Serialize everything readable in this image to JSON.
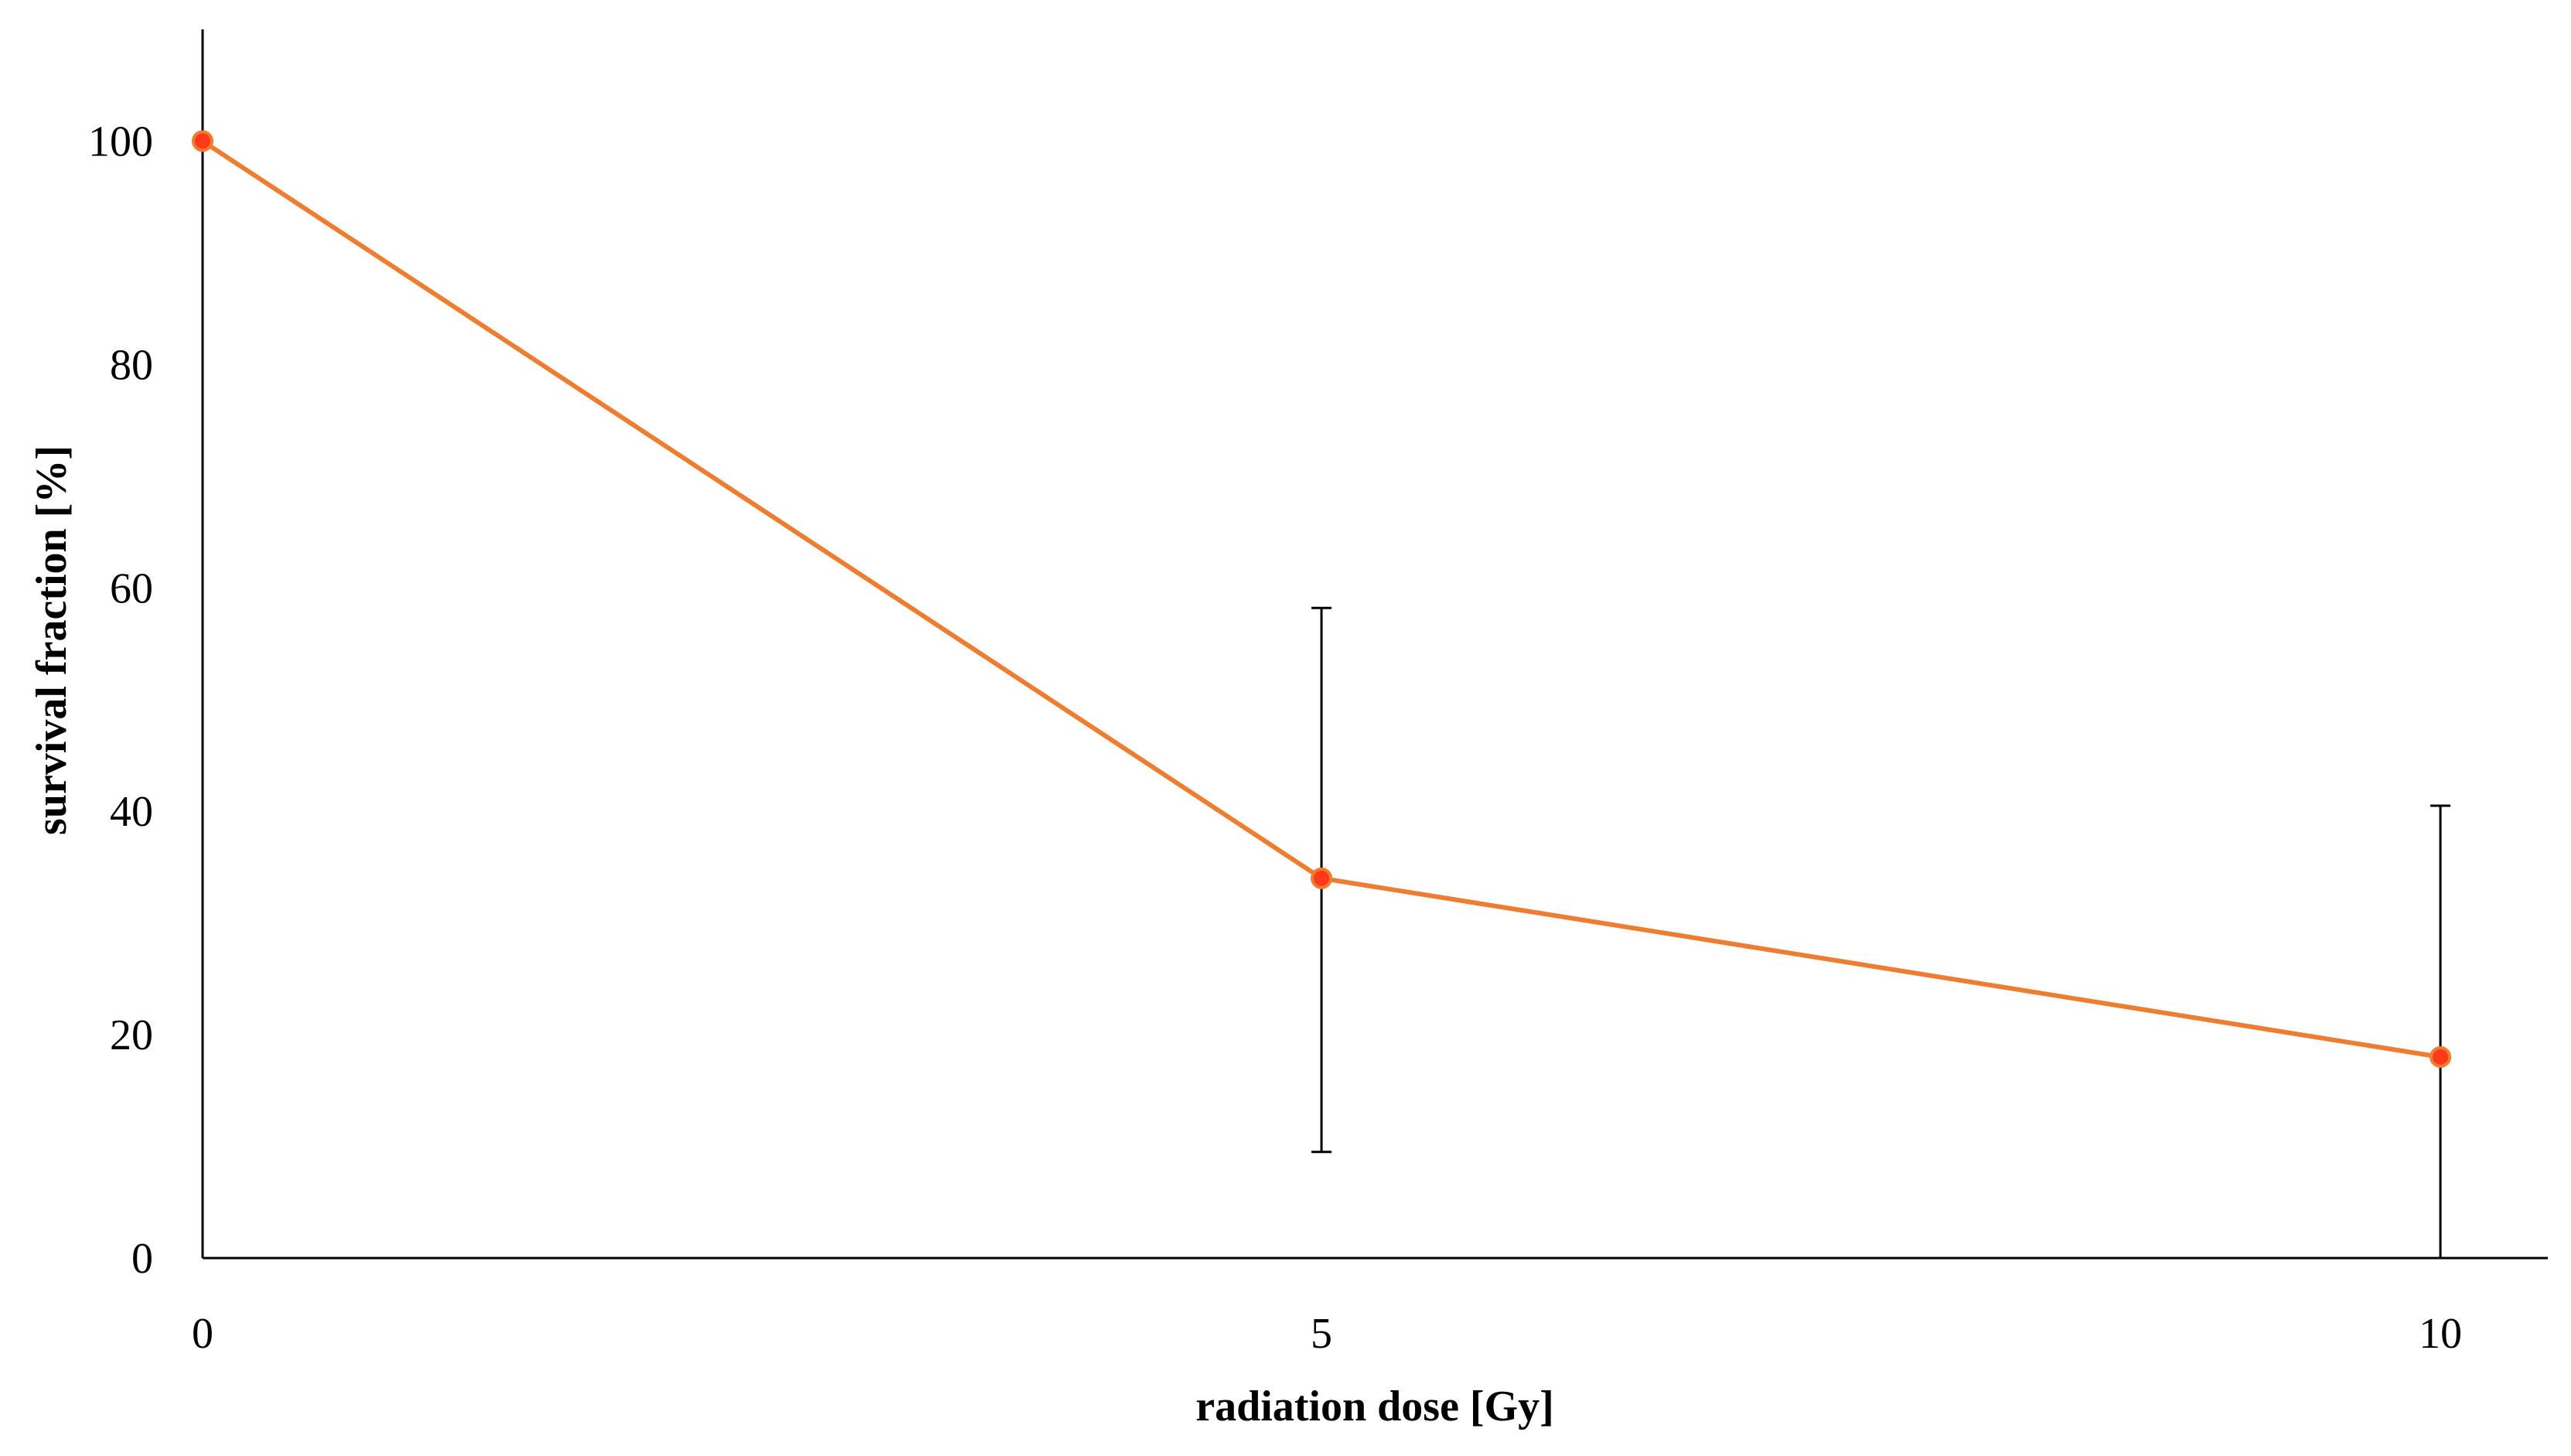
{
  "chart_data": {
    "type": "line",
    "xlabel": "radiation dose [Gy]",
    "ylabel": "survival fraction [%]",
    "x": [
      0,
      5,
      10
    ],
    "x_ticks": [
      "0",
      "5",
      "10"
    ],
    "y_ticks": [
      "0",
      "20",
      "40",
      "60",
      "80",
      "100"
    ],
    "xlim": [
      0,
      10.48
    ],
    "ylim": [
      0,
      110
    ],
    "series": [
      {
        "values": [
          100,
          34,
          18
        ],
        "error_lower": [
          null,
          24.5,
          18
        ],
        "error_upper": [
          null,
          24.2,
          22.5
        ],
        "color": "#ed7d31",
        "marker_fill": "#ff3a1a"
      }
    ],
    "grid": false,
    "legend": "none"
  }
}
